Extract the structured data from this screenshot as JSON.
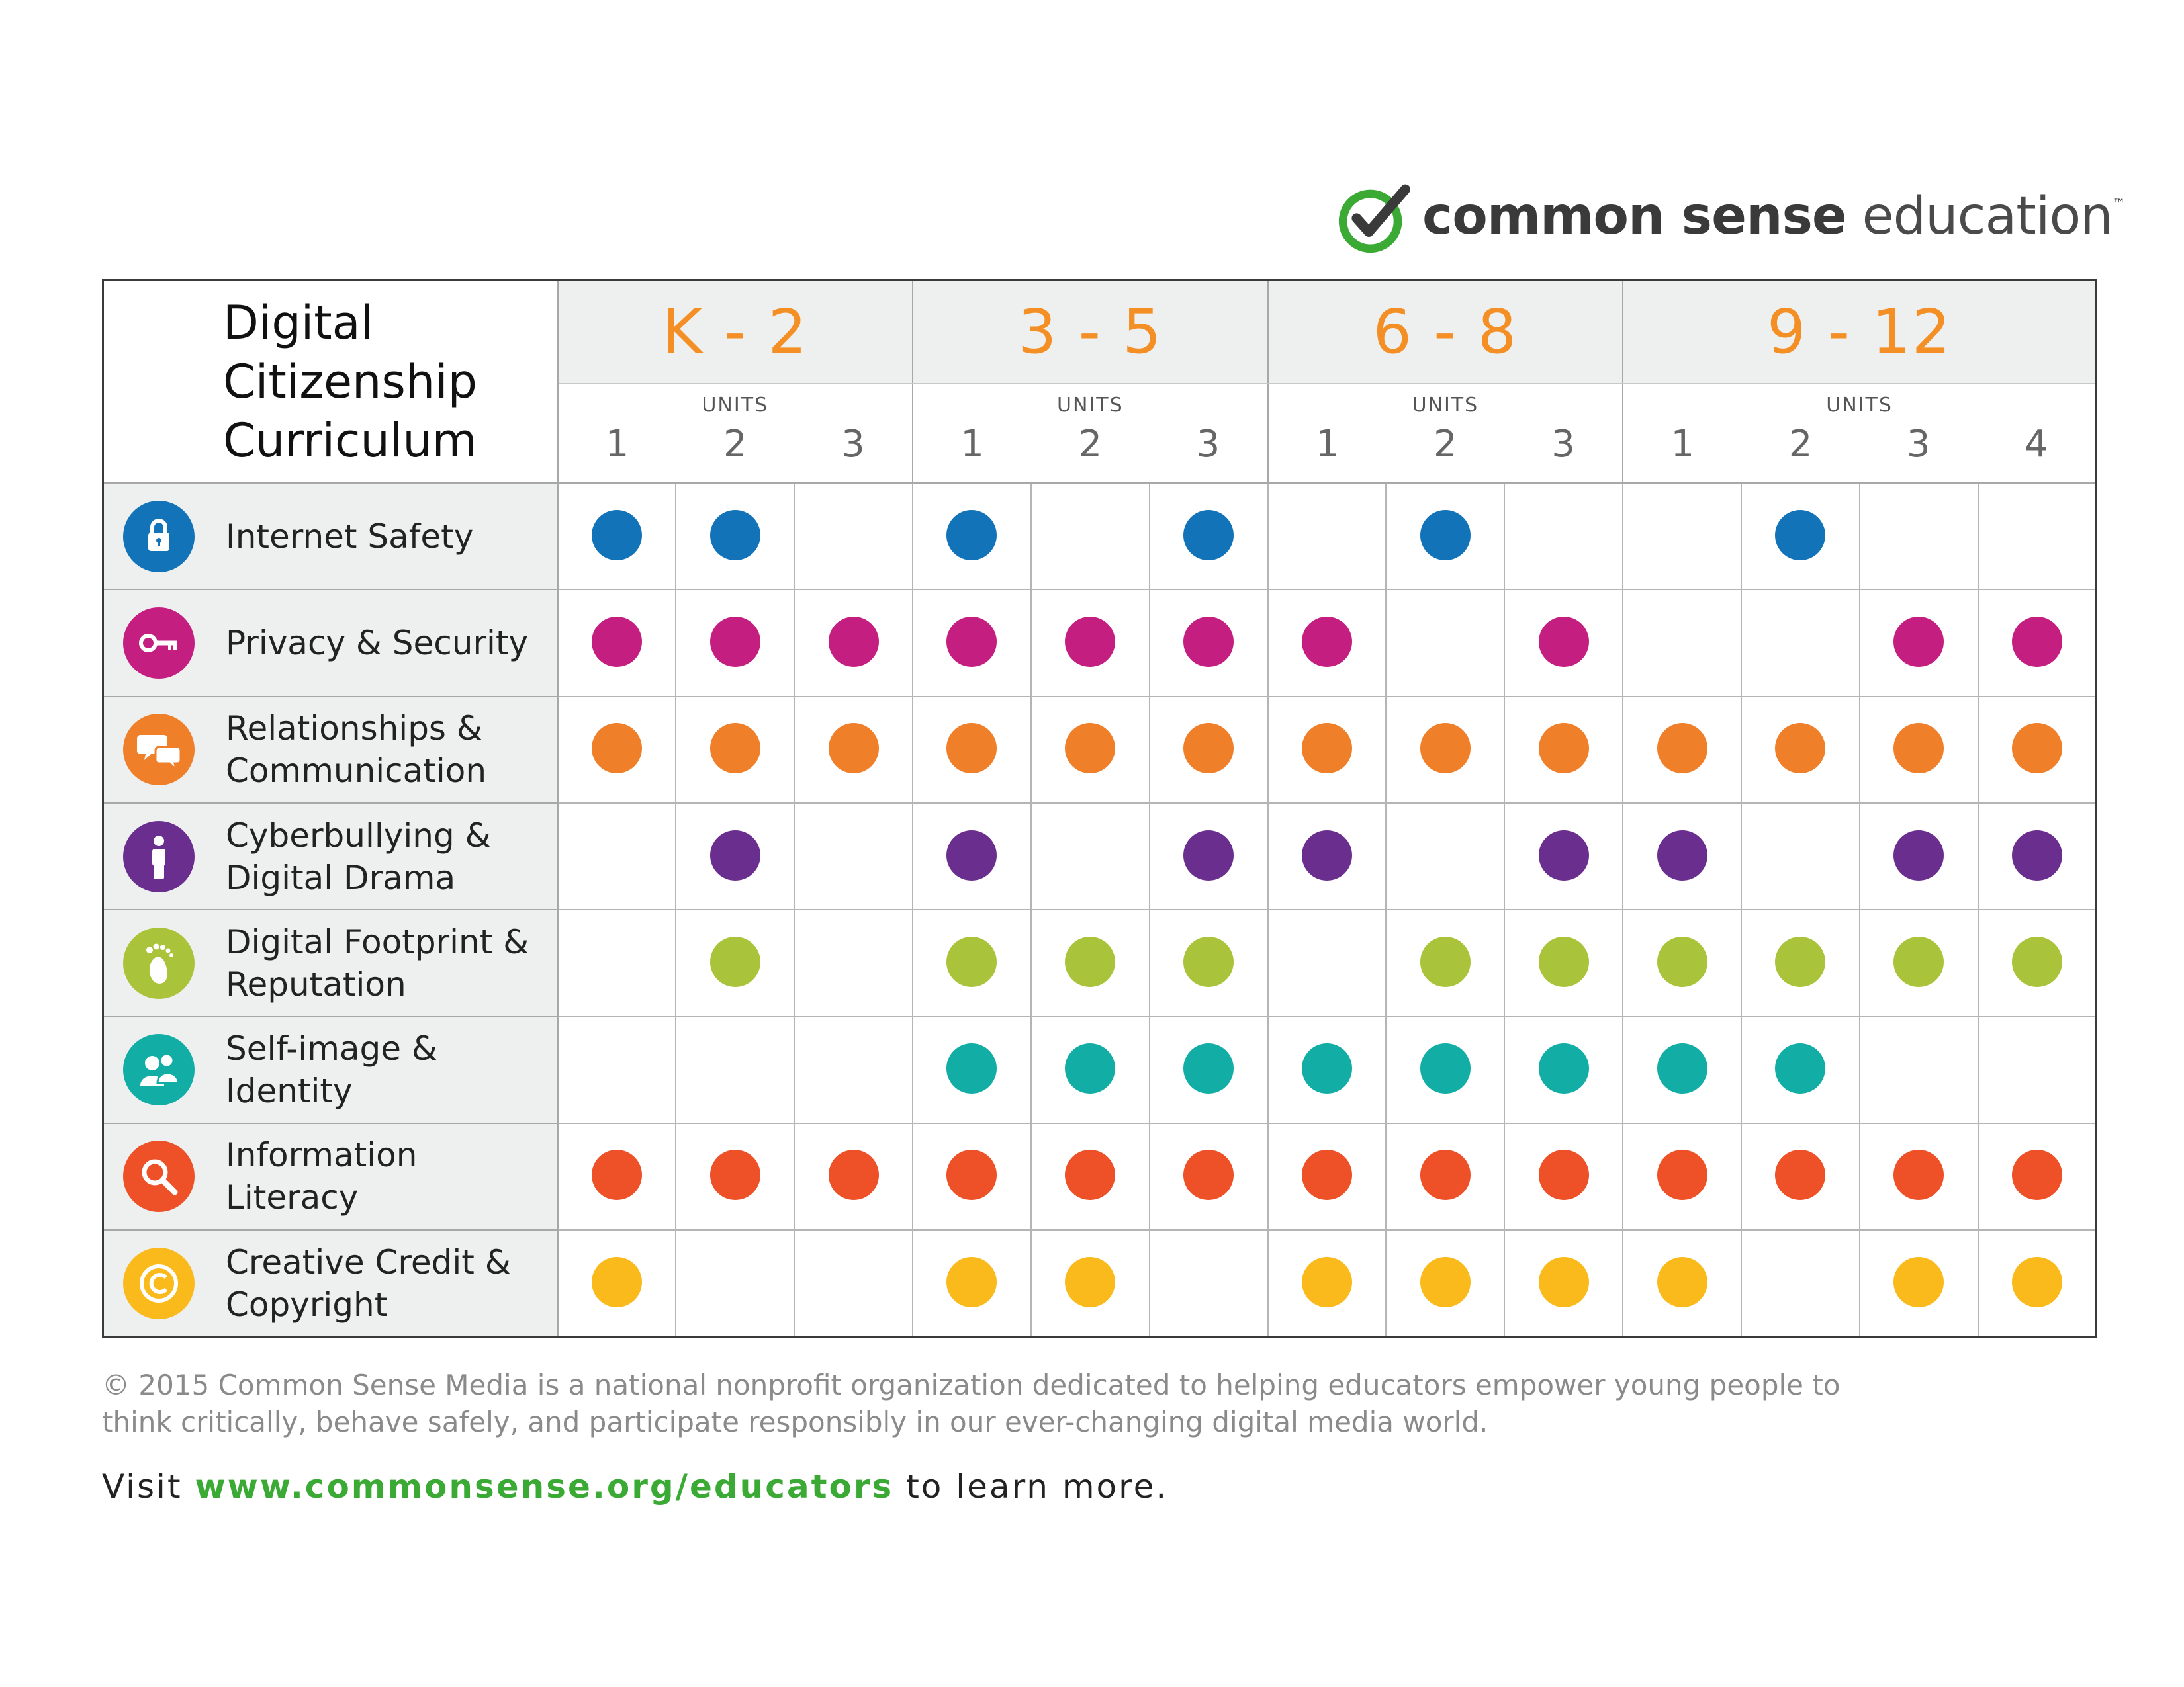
{
  "logo": {
    "bold": "common sense",
    "light": "education",
    "tm": "™",
    "colors": {
      "check_ring": "#3aaa35",
      "check_mark": "#3a3a3a"
    }
  },
  "title": [
    "Digital",
    "Citizenship",
    "Curriculum"
  ],
  "units_label": "UNITS",
  "grades": [
    {
      "label": "K - 2",
      "units": [
        "1",
        "2",
        "3"
      ]
    },
    {
      "label": "3 - 5",
      "units": [
        "1",
        "2",
        "3"
      ]
    },
    {
      "label": "6 - 8",
      "units": [
        "1",
        "2",
        "3"
      ]
    },
    {
      "label": "9 - 12",
      "units": [
        "1",
        "2",
        "3",
        "4"
      ]
    }
  ],
  "rows": [
    {
      "label": [
        "Internet Safety"
      ],
      "icon": "lock-icon",
      "color": "#1273b9",
      "dots": [
        1,
        1,
        0,
        1,
        0,
        1,
        0,
        1,
        0,
        0,
        1,
        0,
        0
      ]
    },
    {
      "label": [
        "Privacy & Security"
      ],
      "icon": "key-icon",
      "color": "#c41e80",
      "dots": [
        1,
        1,
        1,
        1,
        1,
        1,
        1,
        0,
        1,
        0,
        0,
        1,
        1
      ]
    },
    {
      "label": [
        "Relationships &",
        "Communication"
      ],
      "icon": "chat-bubbles-icon",
      "color": "#f07f2a",
      "dots": [
        1,
        1,
        1,
        1,
        1,
        1,
        1,
        1,
        1,
        1,
        1,
        1,
        1
      ]
    },
    {
      "label": [
        "Cyberbullying &",
        "Digital Drama"
      ],
      "icon": "person-icon",
      "color": "#6a2f8e",
      "dots": [
        0,
        1,
        0,
        1,
        0,
        1,
        1,
        0,
        1,
        1,
        0,
        1,
        1
      ]
    },
    {
      "label": [
        "Digital Footprint &",
        "Reputation"
      ],
      "icon": "footprint-icon",
      "color": "#a9c43b",
      "dots": [
        0,
        1,
        0,
        1,
        1,
        1,
        0,
        1,
        1,
        1,
        1,
        1,
        1
      ]
    },
    {
      "label": [
        "Self-image & Identity"
      ],
      "icon": "people-icon",
      "color": "#12aea5",
      "dots": [
        0,
        0,
        0,
        1,
        1,
        1,
        1,
        1,
        1,
        1,
        1,
        0,
        0
      ]
    },
    {
      "label": [
        "Information Literacy"
      ],
      "icon": "magnifier-icon",
      "color": "#ee5128",
      "dots": [
        1,
        1,
        1,
        1,
        1,
        1,
        1,
        1,
        1,
        1,
        1,
        1,
        1
      ]
    },
    {
      "label": [
        "Creative Credit &",
        "Copyright"
      ],
      "icon": "copyright-icon",
      "color": "#fbba1b",
      "dots": [
        1,
        0,
        0,
        1,
        1,
        0,
        1,
        1,
        1,
        1,
        0,
        1,
        1
      ]
    }
  ],
  "footer": {
    "copyright": "© 2015 Common Sense Media is a national nonprofit organization dedicated to helping educators empower young people to think critically, behave safely, and participate responsibly in our ever-changing digital media world.",
    "visit_pre": "Visit ",
    "url": "www.commonsense.org/educators",
    "visit_post": " to learn more."
  }
}
